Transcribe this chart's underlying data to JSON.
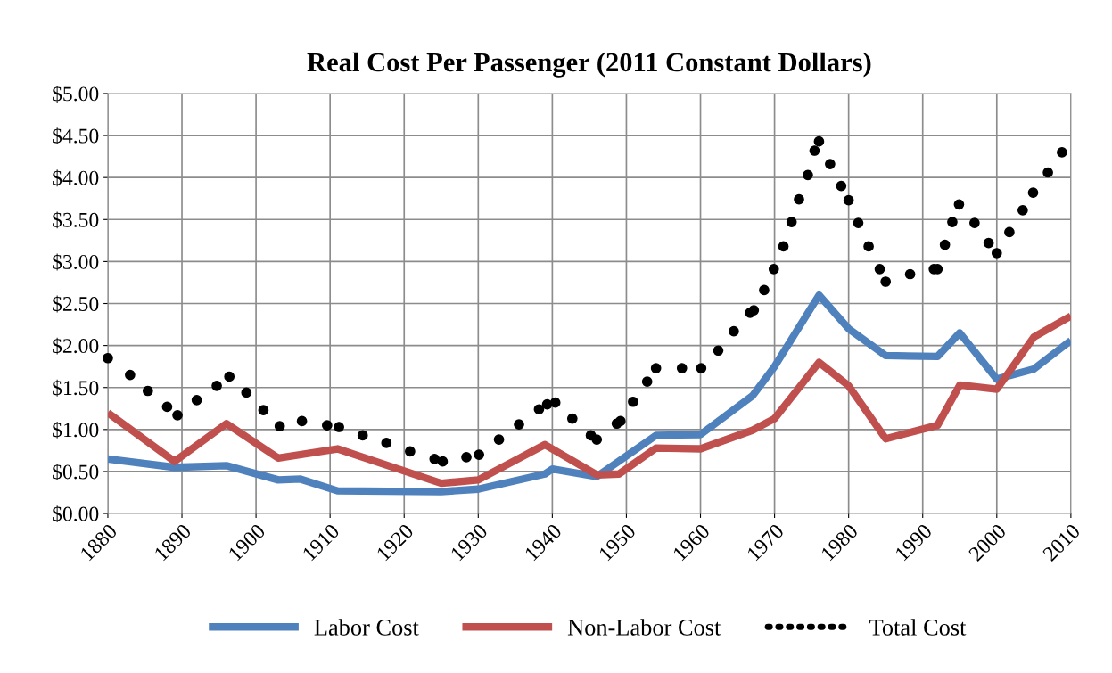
{
  "chart_data": {
    "type": "line",
    "title": "Real Cost Per Passenger (2011 Constant Dollars)",
    "xlim": [
      1880,
      2010
    ],
    "xticks": [
      1880,
      1890,
      1900,
      1910,
      1920,
      1930,
      1940,
      1950,
      1960,
      1970,
      1980,
      1990,
      2000,
      2010
    ],
    "ylim": [
      0,
      5
    ],
    "yticks": [
      {
        "value": 0,
        "label": "$0.00"
      },
      {
        "value": 0.5,
        "label": "$0.50"
      },
      {
        "value": 1,
        "label": "$1.00"
      },
      {
        "value": 1.5,
        "label": "$1.50"
      },
      {
        "value": 2,
        "label": "$2.00"
      },
      {
        "value": 2.5,
        "label": "$2.50"
      },
      {
        "value": 3,
        "label": "$3.00"
      },
      {
        "value": 3.5,
        "label": "$3.50"
      },
      {
        "value": 4,
        "label": "$4.00"
      },
      {
        "value": 4.5,
        "label": "$4.50"
      },
      {
        "value": 5,
        "label": "$5.00"
      }
    ],
    "grid": true,
    "legend": "bottom",
    "series": [
      {
        "name": "Labor Cost",
        "color": "#4f81bd",
        "x": [
          1880,
          1889,
          1896,
          1903,
          1906,
          1911,
          1925,
          1930,
          1939,
          1940,
          1946,
          1954,
          1960,
          1967,
          1970,
          1976,
          1980,
          1985,
          1992,
          1995,
          2000,
          2005,
          2010
        ],
        "values": [
          0.65,
          0.55,
          0.57,
          0.4,
          0.41,
          0.27,
          0.26,
          0.29,
          0.47,
          0.53,
          0.44,
          0.93,
          0.94,
          1.4,
          1.75,
          2.6,
          2.2,
          1.88,
          1.87,
          2.15,
          1.6,
          1.72,
          2.06
        ]
      },
      {
        "name": "Non-Labor Cost",
        "color": "#c0504d",
        "x": [
          1880,
          1889,
          1896,
          1903,
          1911,
          1925,
          1930,
          1939,
          1946,
          1949,
          1954,
          1960,
          1967,
          1970,
          1976,
          1980,
          1985,
          1992,
          1995,
          2000,
          2005,
          2010
        ],
        "values": [
          1.2,
          0.62,
          1.07,
          0.66,
          0.77,
          0.36,
          0.4,
          0.82,
          0.46,
          0.47,
          0.78,
          0.77,
          0.99,
          1.13,
          1.8,
          1.52,
          0.89,
          1.05,
          1.53,
          1.48,
          2.1,
          2.35
        ]
      },
      {
        "name": "Total Cost",
        "color": "#000000",
        "type": "scatter",
        "marker": "circle",
        "x": [
          1880,
          1883,
          1885.4,
          1888,
          1889.4,
          1892,
          1894.7,
          1896.4,
          1898.7,
          1901,
          1903.2,
          1906.2,
          1909.6,
          1911.2,
          1914.4,
          1917.6,
          1920.8,
          1924.1,
          1925.2,
          1928.4,
          1930.1,
          1932.8,
          1935.5,
          1938.2,
          1939.3,
          1940.4,
          1942.7,
          1945.2,
          1946,
          1948.7,
          1949.2,
          1950.9,
          1952.8,
          1954,
          1957.5,
          1960.1,
          1962.4,
          1964.5,
          1966.7,
          1967.2,
          1968.6,
          1969.9,
          1971.2,
          1972.3,
          1973.3,
          1974.5,
          1975.4,
          1976,
          1977.5,
          1979,
          1980,
          1981.3,
          1982.7,
          1984.2,
          1985,
          1988.3,
          1991.5,
          1992,
          1993,
          1994,
          1994.9,
          1997,
          1998.9,
          2000,
          2001.7,
          2003.5,
          2004.9,
          2006.9,
          2008.8
        ],
        "values": [
          1.85,
          1.65,
          1.46,
          1.27,
          1.17,
          1.35,
          1.52,
          1.63,
          1.44,
          1.23,
          1.04,
          1.1,
          1.05,
          1.03,
          0.93,
          0.84,
          0.74,
          0.65,
          0.62,
          0.67,
          0.7,
          0.88,
          1.06,
          1.24,
          1.3,
          1.32,
          1.13,
          0.93,
          0.88,
          1.07,
          1.1,
          1.33,
          1.57,
          1.73,
          1.73,
          1.73,
          1.94,
          2.17,
          2.39,
          2.42,
          2.66,
          2.91,
          3.18,
          3.47,
          3.74,
          4.03,
          4.32,
          4.43,
          4.16,
          3.9,
          3.73,
          3.46,
          3.18,
          2.91,
          2.76,
          2.85,
          2.91,
          2.91,
          3.2,
          3.47,
          3.68,
          3.46,
          3.22,
          3.1,
          3.35,
          3.61,
          3.82,
          4.06,
          4.3
        ]
      }
    ]
  }
}
